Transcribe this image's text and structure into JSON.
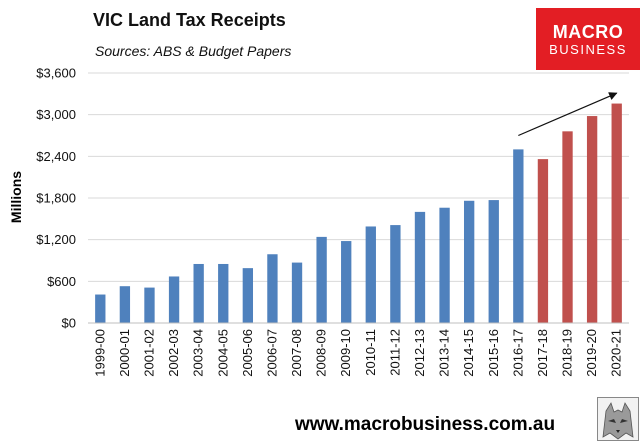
{
  "header": {
    "title": "VIC Land Tax Receipts",
    "subtitle": "Sources: ABS & Budget Papers"
  },
  "logo": {
    "line1": "MACRO",
    "line2": "BUSINESS",
    "color": "#e31e24"
  },
  "footer": {
    "url": "www.macrobusiness.com.au"
  },
  "colors": {
    "actual": "#4f81bd",
    "forecast": "#c0504d"
  },
  "chart_data": {
    "type": "bar",
    "title": "VIC Land Tax Receipts",
    "subtitle": "Sources: ABS & Budget Papers",
    "xlabel": "",
    "ylabel": "Millions",
    "ylim": [
      0,
      3600
    ],
    "yticks": [
      0,
      600,
      1200,
      1800,
      2400,
      3000,
      3600
    ],
    "ytick_labels": [
      "$0",
      "$600",
      "$1,200",
      "$1,800",
      "$2,400",
      "$3,000",
      "$3,600"
    ],
    "grid": true,
    "categories": [
      "1999-00",
      "2000-01",
      "2001-02",
      "2002-03",
      "2003-04",
      "2004-05",
      "2005-06",
      "2006-07",
      "2007-08",
      "2008-09",
      "2009-10",
      "2010-11",
      "2011-12",
      "2012-13",
      "2013-14",
      "2014-15",
      "2015-16",
      "2016-17",
      "2017-18",
      "2018-19",
      "2019-20",
      "2020-21"
    ],
    "values": [
      410,
      530,
      510,
      670,
      850,
      850,
      790,
      990,
      870,
      1240,
      1180,
      1390,
      1410,
      1600,
      1660,
      1760,
      1770,
      2500,
      2360,
      2760,
      2980,
      3160
    ],
    "bar_groups": [
      "actual",
      "actual",
      "actual",
      "actual",
      "actual",
      "actual",
      "actual",
      "actual",
      "actual",
      "actual",
      "actual",
      "actual",
      "actual",
      "actual",
      "actual",
      "actual",
      "actual",
      "actual",
      "forecast",
      "forecast",
      "forecast",
      "forecast"
    ],
    "annotations": [
      {
        "type": "arrow",
        "from": [
          "2016-17",
          2700
        ],
        "to": [
          "2020-21",
          3310
        ]
      }
    ]
  }
}
